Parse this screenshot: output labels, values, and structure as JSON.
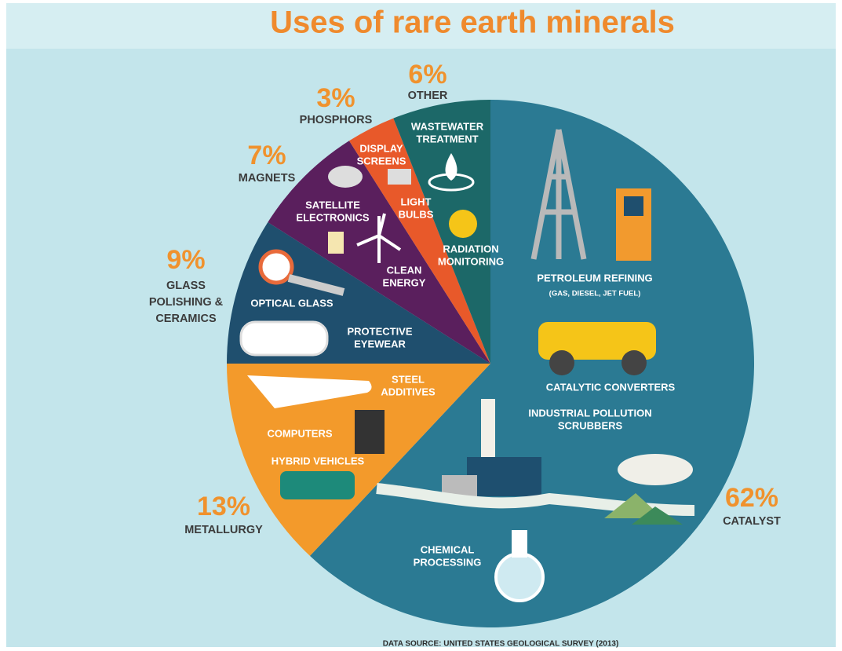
{
  "chart_data": {
    "type": "pie",
    "title": "Uses of rare earth minerals",
    "categories": [
      "CATALYST",
      "METALLURGY",
      "GLASS POLISHING & CERAMICS",
      "MAGNETS",
      "PHOSPHORS",
      "OTHER"
    ],
    "values": [
      62,
      13,
      9,
      7,
      3,
      6
    ],
    "value_labels": [
      "62%",
      "13%",
      "9%",
      "7%",
      "3%",
      "6%"
    ],
    "colors": [
      "#2b7a93",
      "#f39a2b",
      "#1f4f6e",
      "#5a1f5d",
      "#e8592a",
      "#1c6868"
    ],
    "uses": [
      [
        [
          "PETROLEUM REFINING",
          "(GAS, DIESEL, JET FUEL)"
        ],
        [
          "CATALYTIC CONVERTERS"
        ],
        [
          "INDUSTRIAL POLLUTION",
          "SCRUBBERS"
        ],
        [
          "CHEMICAL",
          "PROCESSING"
        ]
      ],
      [
        [
          "STEEL",
          "ADDITIVES"
        ],
        [
          "COMPUTERS"
        ],
        [
          "HYBRID VEHICLES"
        ]
      ],
      [
        [
          "OPTICAL GLASS"
        ],
        [
          "PROTECTIVE",
          "EYEWEAR"
        ]
      ],
      [
        [
          "SATELLITE",
          "ELECTRONICS"
        ],
        [
          "CLEAN",
          "ENERGY"
        ]
      ],
      [
        [
          "DISPLAY",
          "SCREENS"
        ],
        [
          "LIGHT",
          "BULBS"
        ]
      ],
      [
        [
          "WASTEWATER",
          "TREATMENT"
        ],
        [
          "RADIATION",
          "MONITORING"
        ]
      ]
    ],
    "source": "DATA SOURCE: UNITED STATES GEOLOGICAL SURVEY (2013)"
  }
}
